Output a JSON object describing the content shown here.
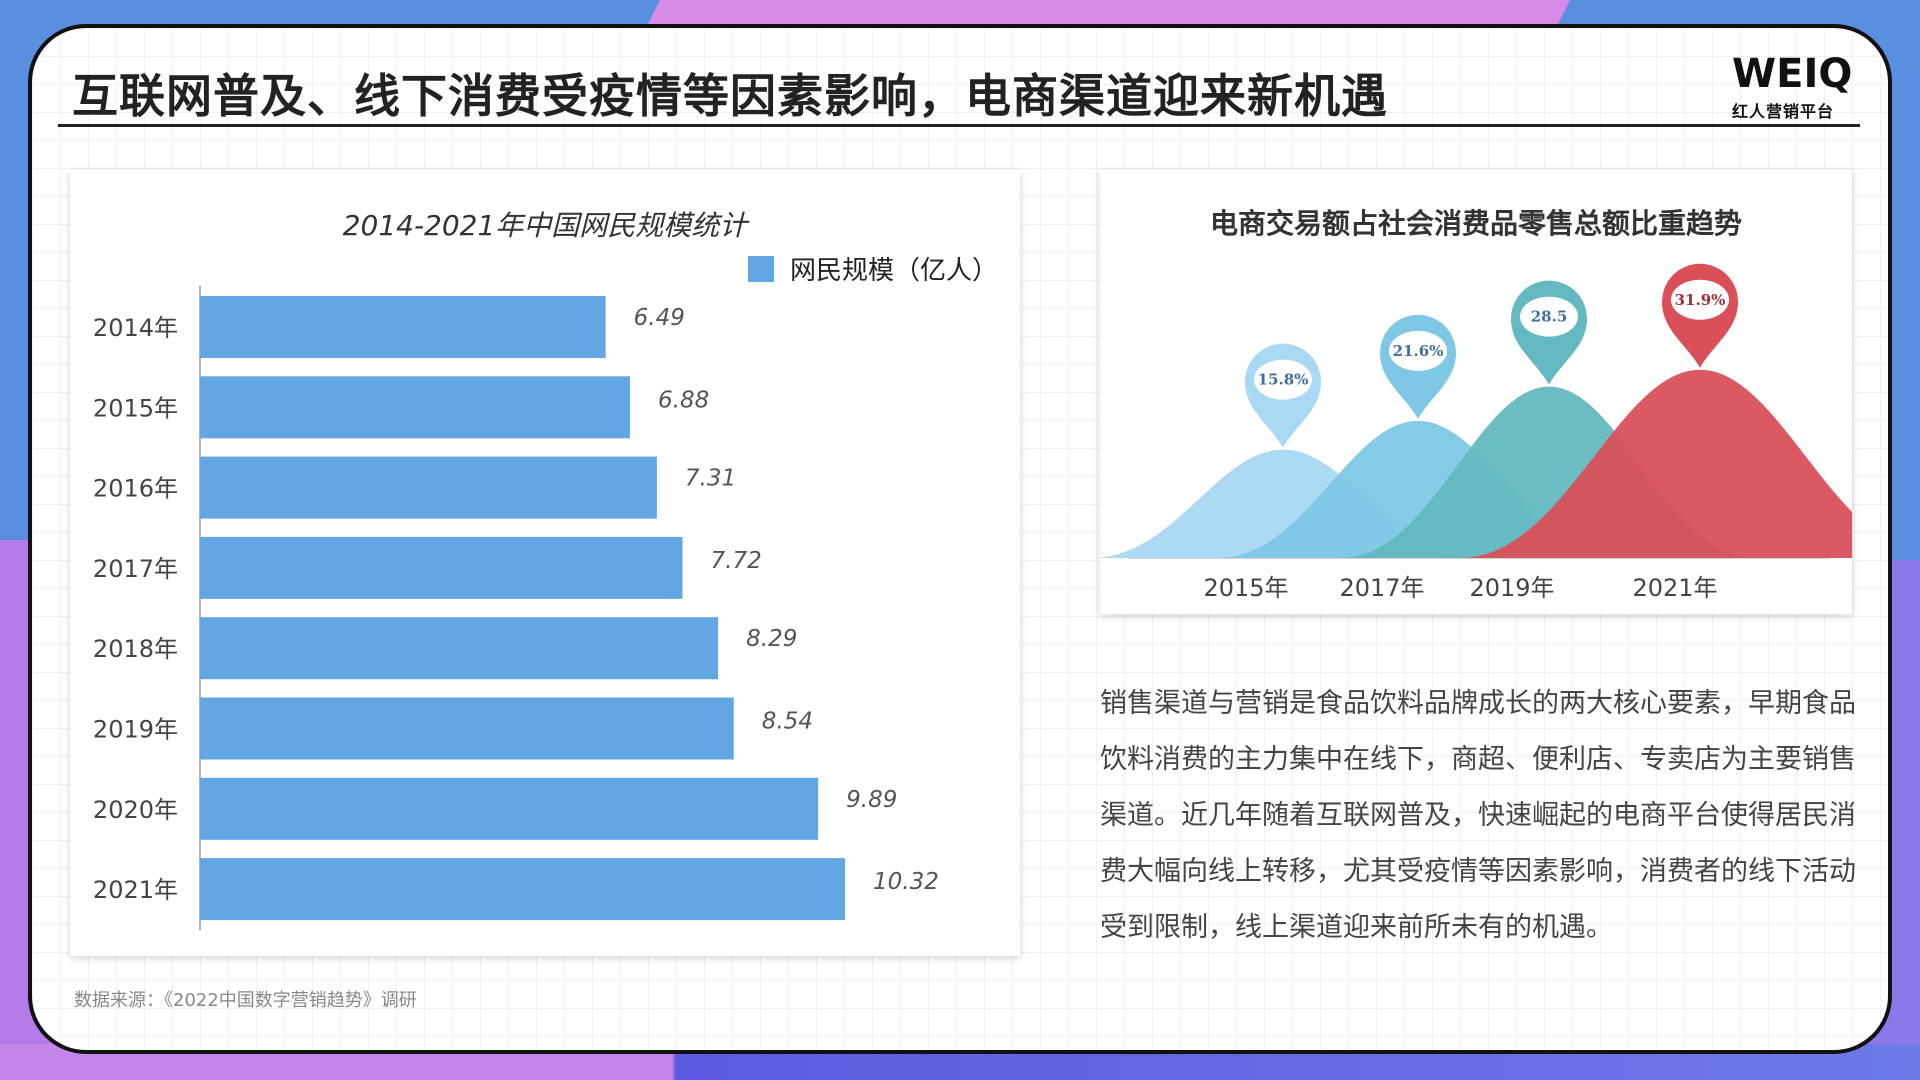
{
  "page": {
    "title": "互联网普及、线下消费受疫情等因素影响，电商渠道迎来新机遇",
    "logo_main": "WEIQ",
    "logo_sub": "红人营销平台",
    "source": "数据来源：《2022中国数字营销趋势》调研",
    "body_text": "销售渠道与营销是食品饮料品牌成长的两大核心要素，早期食品饮料消费的主力集中在线下，商超、便利店、专卖店为主要销售渠道。近几年随着互联网普及，快速崛起的电商平台使得居民消费大幅向线上转移，尤其受疫情等因素影响，消费者的线下活动受到限制，线上渠道迎来前所未有的机遇。"
  },
  "chart_data": [
    {
      "type": "bar",
      "orientation": "horizontal",
      "title": "2014-2021年中国网民规模统计",
      "legend": [
        "网民规模（亿人）"
      ],
      "categories": [
        "2014年",
        "2015年",
        "2016年",
        "2017年",
        "2018年",
        "2019年",
        "2020年",
        "2021年"
      ],
      "series": [
        {
          "name": "网民规模（亿人）",
          "values": [
            6.49,
            6.88,
            7.31,
            7.72,
            8.29,
            8.54,
            9.89,
            10.32
          ]
        }
      ],
      "value_labels": [
        "6.49",
        "6.88",
        "7.31",
        "7.72",
        "8.29",
        "8.54",
        "9.89",
        "10.32"
      ],
      "xlim": [
        0,
        12
      ],
      "color": "#62a6e4",
      "grid": false,
      "legend_position": "top-right"
    },
    {
      "type": "area",
      "title": "电商交易额占社会消费品零售总额比重趋势",
      "categories": [
        "2015年",
        "2017年",
        "2019年",
        "2021年"
      ],
      "values": [
        15.8,
        21.6,
        28.5,
        31.9
      ],
      "value_labels": [
        "15.8%",
        "21.6%",
        "28.5",
        "31.9%"
      ],
      "colors": [
        "#a8d8f2",
        "#7ec8e6",
        "#63b9bf",
        "#d9505a"
      ],
      "pin_text_colors": [
        "#3f6f9e",
        "#3f6f9e",
        "#3f6f9e",
        "#9a2f36"
      ]
    }
  ]
}
